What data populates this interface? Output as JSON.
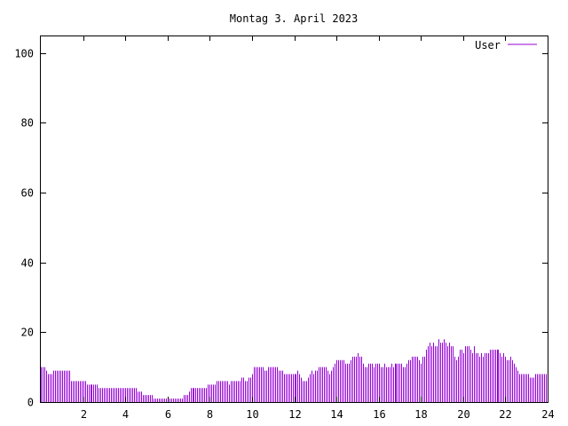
{
  "chart_data": {
    "type": "bar",
    "style": "impulses",
    "title": "Montag 3. April 2023",
    "xlabel": "",
    "ylabel": "",
    "xlim": [
      0,
      24
    ],
    "ylim": [
      0,
      105
    ],
    "x_ticks": [
      2,
      4,
      6,
      8,
      10,
      12,
      14,
      16,
      18,
      20,
      22,
      24
    ],
    "x_tick_labels": [
      "2",
      "4",
      "6",
      "8",
      "10",
      "12",
      "14",
      "16",
      "18",
      "20",
      "22",
      "24"
    ],
    "y_ticks": [
      0,
      20,
      40,
      60,
      80,
      100
    ],
    "y_tick_labels": [
      "0",
      "20",
      "40",
      "60",
      "80",
      "100"
    ],
    "grid": false,
    "legend_position": "top-right",
    "series": [
      {
        "name": "User",
        "color": "#9400d3",
        "x_interval_minutes": 5,
        "values": [
          10,
          10,
          10,
          9,
          8,
          8,
          8,
          9,
          9,
          9,
          9,
          9,
          9,
          9,
          9,
          9,
          9,
          6,
          6,
          6,
          6,
          6,
          6,
          6,
          6,
          6,
          5,
          5,
          5,
          5,
          5,
          5,
          5,
          4,
          4,
          4,
          4,
          4,
          4,
          4,
          4,
          4,
          4,
          4,
          4,
          4,
          4,
          4,
          4,
          4,
          4,
          4,
          4,
          4,
          4,
          3,
          3,
          3,
          2,
          2,
          2,
          2,
          2,
          2,
          1,
          1,
          1,
          1,
          1,
          1,
          1,
          1,
          1,
          1,
          1,
          1,
          1,
          1,
          1,
          1,
          1,
          2,
          2,
          2,
          3,
          4,
          4,
          4,
          4,
          4,
          4,
          4,
          4,
          4,
          4,
          5,
          5,
          5,
          5,
          5,
          6,
          6,
          6,
          6,
          6,
          6,
          6,
          5,
          6,
          6,
          6,
          6,
          6,
          6,
          7,
          7,
          6,
          6,
          7,
          7,
          8,
          10,
          10,
          10,
          10,
          10,
          10,
          9,
          9,
          10,
          10,
          10,
          10,
          10,
          10,
          9,
          9,
          9,
          8,
          8,
          8,
          8,
          8,
          8,
          8,
          8,
          9,
          8,
          7,
          6,
          6,
          6,
          7,
          8,
          9,
          8,
          9,
          9,
          10,
          10,
          10,
          10,
          10,
          9,
          8,
          9,
          10,
          11,
          12,
          12,
          12,
          12,
          12,
          11,
          11,
          11,
          12,
          13,
          13,
          13,
          14,
          13,
          13,
          11,
          10,
          10,
          11,
          11,
          11,
          10,
          11,
          11,
          11,
          10,
          10,
          11,
          10,
          10,
          10,
          11,
          10,
          11,
          11,
          11,
          11,
          11,
          10,
          10,
          11,
          12,
          12,
          13,
          13,
          13,
          13,
          12,
          11,
          13,
          13,
          15,
          16,
          17,
          16,
          17,
          16,
          16,
          18,
          17,
          17,
          18,
          17,
          16,
          17,
          16,
          16,
          13,
          12,
          13,
          15,
          15,
          14,
          16,
          16,
          16,
          15,
          14,
          16,
          14,
          14,
          13,
          14,
          13,
          14,
          14,
          14,
          15,
          15,
          15,
          15,
          15,
          15,
          14,
          13,
          14,
          13,
          12,
          12,
          13,
          12,
          11,
          10,
          9,
          8,
          8,
          8,
          8,
          8,
          8,
          7,
          7,
          7,
          8,
          8,
          8,
          8,
          8,
          8,
          8
        ]
      }
    ]
  }
}
